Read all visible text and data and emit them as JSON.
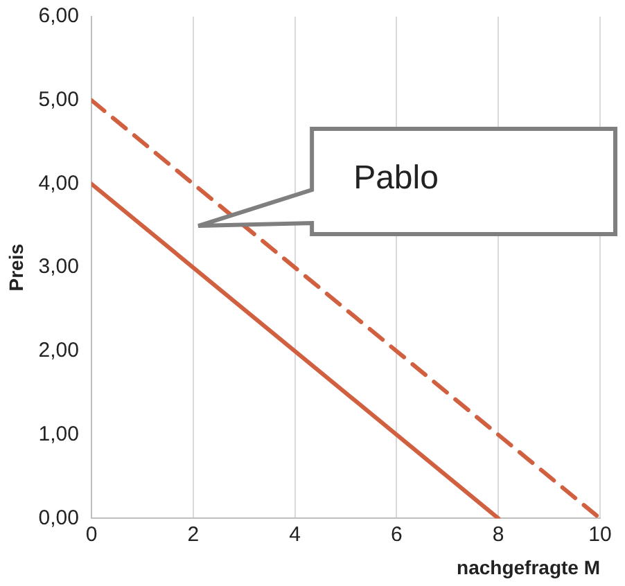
{
  "chart_data": {
    "type": "line",
    "xlabel": "nachgefragte M",
    "ylabel": "Preis",
    "series": [
      {
        "color": "#d0603f",
        "x": [
          0,
          8
        ],
        "values": [
          4,
          0
        ],
        "line_style": "solid"
      },
      {
        "color": "#d0603f",
        "x": [
          0,
          10
        ],
        "values": [
          5,
          0
        ],
        "line_style": "dashed"
      }
    ],
    "xlim": [
      0,
      10
    ],
    "xticks": [
      0,
      2,
      4,
      6,
      8,
      10
    ],
    "ylim": [
      0,
      6
    ],
    "yticks": [
      {
        "value": 0,
        "label": "0,00"
      },
      {
        "value": 1,
        "label": "1,00"
      },
      {
        "value": 2,
        "label": "2,00"
      },
      {
        "value": 3,
        "label": "3,00"
      },
      {
        "value": 4,
        "label": "4,00"
      },
      {
        "value": 5,
        "label": "5,00"
      },
      {
        "value": 6,
        "label": "6,00"
      }
    ],
    "grid": "x",
    "legend": false,
    "marker": "none",
    "annotations": [
      "Pablo"
    ]
  }
}
